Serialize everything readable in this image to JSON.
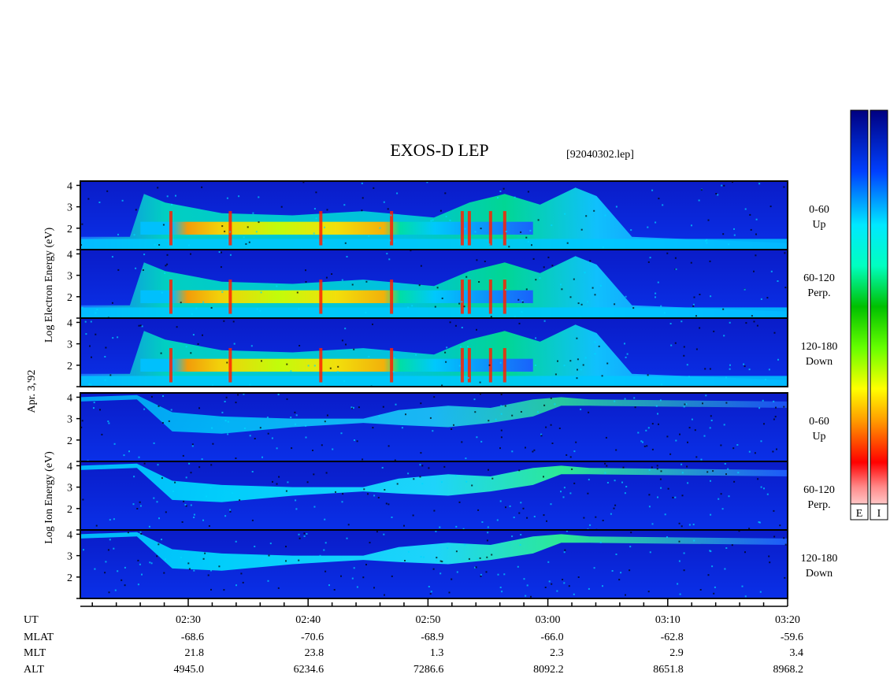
{
  "title": "EXOS-D LEP",
  "file_label": "[92040302.lep]",
  "date_label": "Apr. 3,'92",
  "electron_ylabel": "Log Electron Energy (eV)",
  "ion_ylabel": "Log Ion Energy (eV)",
  "colorbar_labels": [
    "E",
    "I"
  ],
  "chart_data": {
    "type": "heatmap",
    "x_unit": "UT",
    "x_range": [
      "02:21",
      "03:20"
    ],
    "y_range": [
      1,
      4.2
    ],
    "panels": [
      {
        "species": "Electron",
        "pitch_range": "0-60",
        "direction": "Up",
        "yticks": [
          "2",
          "3",
          "4"
        ]
      },
      {
        "species": "Electron",
        "pitch_range": "60-120",
        "direction": "Perp.",
        "yticks": [
          "2",
          "3",
          "4"
        ]
      },
      {
        "species": "Electron",
        "pitch_range": "120-180",
        "direction": "Down",
        "yticks": [
          "2",
          "3",
          "4"
        ]
      },
      {
        "species": "Ion",
        "pitch_range": "0-60",
        "direction": "Up",
        "yticks": [
          "2",
          "3",
          "4"
        ]
      },
      {
        "species": "Ion",
        "pitch_range": "60-120",
        "direction": "Perp.",
        "yticks": [
          "2",
          "3",
          "4"
        ]
      },
      {
        "species": "Ion",
        "pitch_range": "120-180",
        "direction": "Down",
        "yticks": [
          "2",
          "3",
          "4"
        ]
      }
    ],
    "ephemeris": {
      "row_labels": [
        "UT",
        "MLAT",
        "MLT",
        "ALT"
      ],
      "UT": [
        "02:30",
        "02:40",
        "02:50",
        "03:00",
        "03:10",
        "03:20"
      ],
      "MLAT": [
        "-68.6",
        "-70.6",
        "-68.9",
        "-66.0",
        "-62.8",
        "-59.6"
      ],
      "MLT": [
        "21.8",
        "23.8",
        "1.3",
        "2.3",
        "2.9",
        "3.4"
      ],
      "ALT": [
        "4945.0",
        "6234.6",
        "7286.6",
        "8092.2",
        "8651.8",
        "8968.2"
      ]
    }
  }
}
